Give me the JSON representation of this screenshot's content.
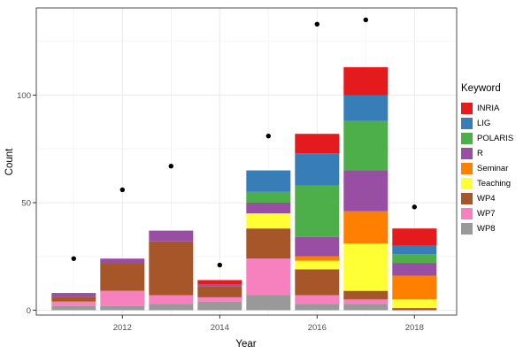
{
  "chart_data": {
    "type": "bar",
    "subtype": "stacked-bars-with-points",
    "title": "",
    "xlabel": "Year",
    "ylabel": "Count",
    "legend_title": "Keyword",
    "legend_position": "right",
    "grid": true,
    "categories": [
      2011,
      2012,
      2013,
      2014,
      2015,
      2016,
      2017,
      2018
    ],
    "x_major_ticks": [
      2012,
      2014,
      2016,
      2018
    ],
    "x_minor_gridlines": [
      2011,
      2013,
      2015,
      2017
    ],
    "y_ticks": [
      0,
      50,
      100
    ],
    "y_minor_gridlines": [
      25,
      75,
      125
    ],
    "ylim": [
      -2,
      141
    ],
    "stack_order_bottom_to_top": [
      "WP8",
      "WP7",
      "WP4",
      "Teaching",
      "Seminar",
      "R",
      "POLARIS",
      "LIG",
      "INRIA"
    ],
    "series": [
      {
        "name": "INRIA",
        "color": "#E41A1C",
        "values": [
          0,
          0,
          0,
          2,
          0,
          9,
          13,
          8
        ]
      },
      {
        "name": "LIG",
        "color": "#377EB8",
        "values": [
          0,
          0,
          0,
          0,
          10,
          15,
          12,
          4
        ]
      },
      {
        "name": "POLARIS",
        "color": "#4DAF4A",
        "values": [
          0,
          0,
          0,
          0,
          5,
          24,
          23,
          4
        ]
      },
      {
        "name": "R",
        "color": "#984EA3",
        "values": [
          2,
          2,
          5,
          1,
          5,
          9,
          19,
          6
        ]
      },
      {
        "name": "Seminar",
        "color": "#FF7F00",
        "values": [
          0,
          0,
          0,
          0,
          0,
          2,
          15,
          11
        ]
      },
      {
        "name": "Teaching",
        "color": "#FFFF33",
        "values": [
          0,
          0,
          0,
          0,
          7,
          4,
          22,
          4
        ]
      },
      {
        "name": "WP4",
        "color": "#A65628",
        "values": [
          2,
          13,
          25,
          5,
          14,
          12,
          4,
          1
        ]
      },
      {
        "name": "WP7",
        "color": "#F781BF",
        "values": [
          2,
          7,
          4,
          2,
          17,
          4,
          2,
          0
        ]
      },
      {
        "name": "WP8",
        "color": "#999999",
        "values": [
          2,
          2,
          3,
          4,
          7,
          3,
          3,
          0
        ]
      }
    ],
    "bar_totals": [
      8,
      24,
      37,
      14,
      65,
      82,
      113,
      38
    ],
    "points": {
      "name": "dots",
      "color": "#000000",
      "values": [
        24,
        56,
        67,
        21,
        81,
        133,
        135,
        48
      ]
    },
    "style": {
      "panel_border_color": "#4D4D4D",
      "major_grid_color": "#EBEBEB",
      "minor_grid_color": "#F5F5F5",
      "tick_label_color": "#4D4D4D",
      "tick_mark_color": "#333333"
    }
  }
}
